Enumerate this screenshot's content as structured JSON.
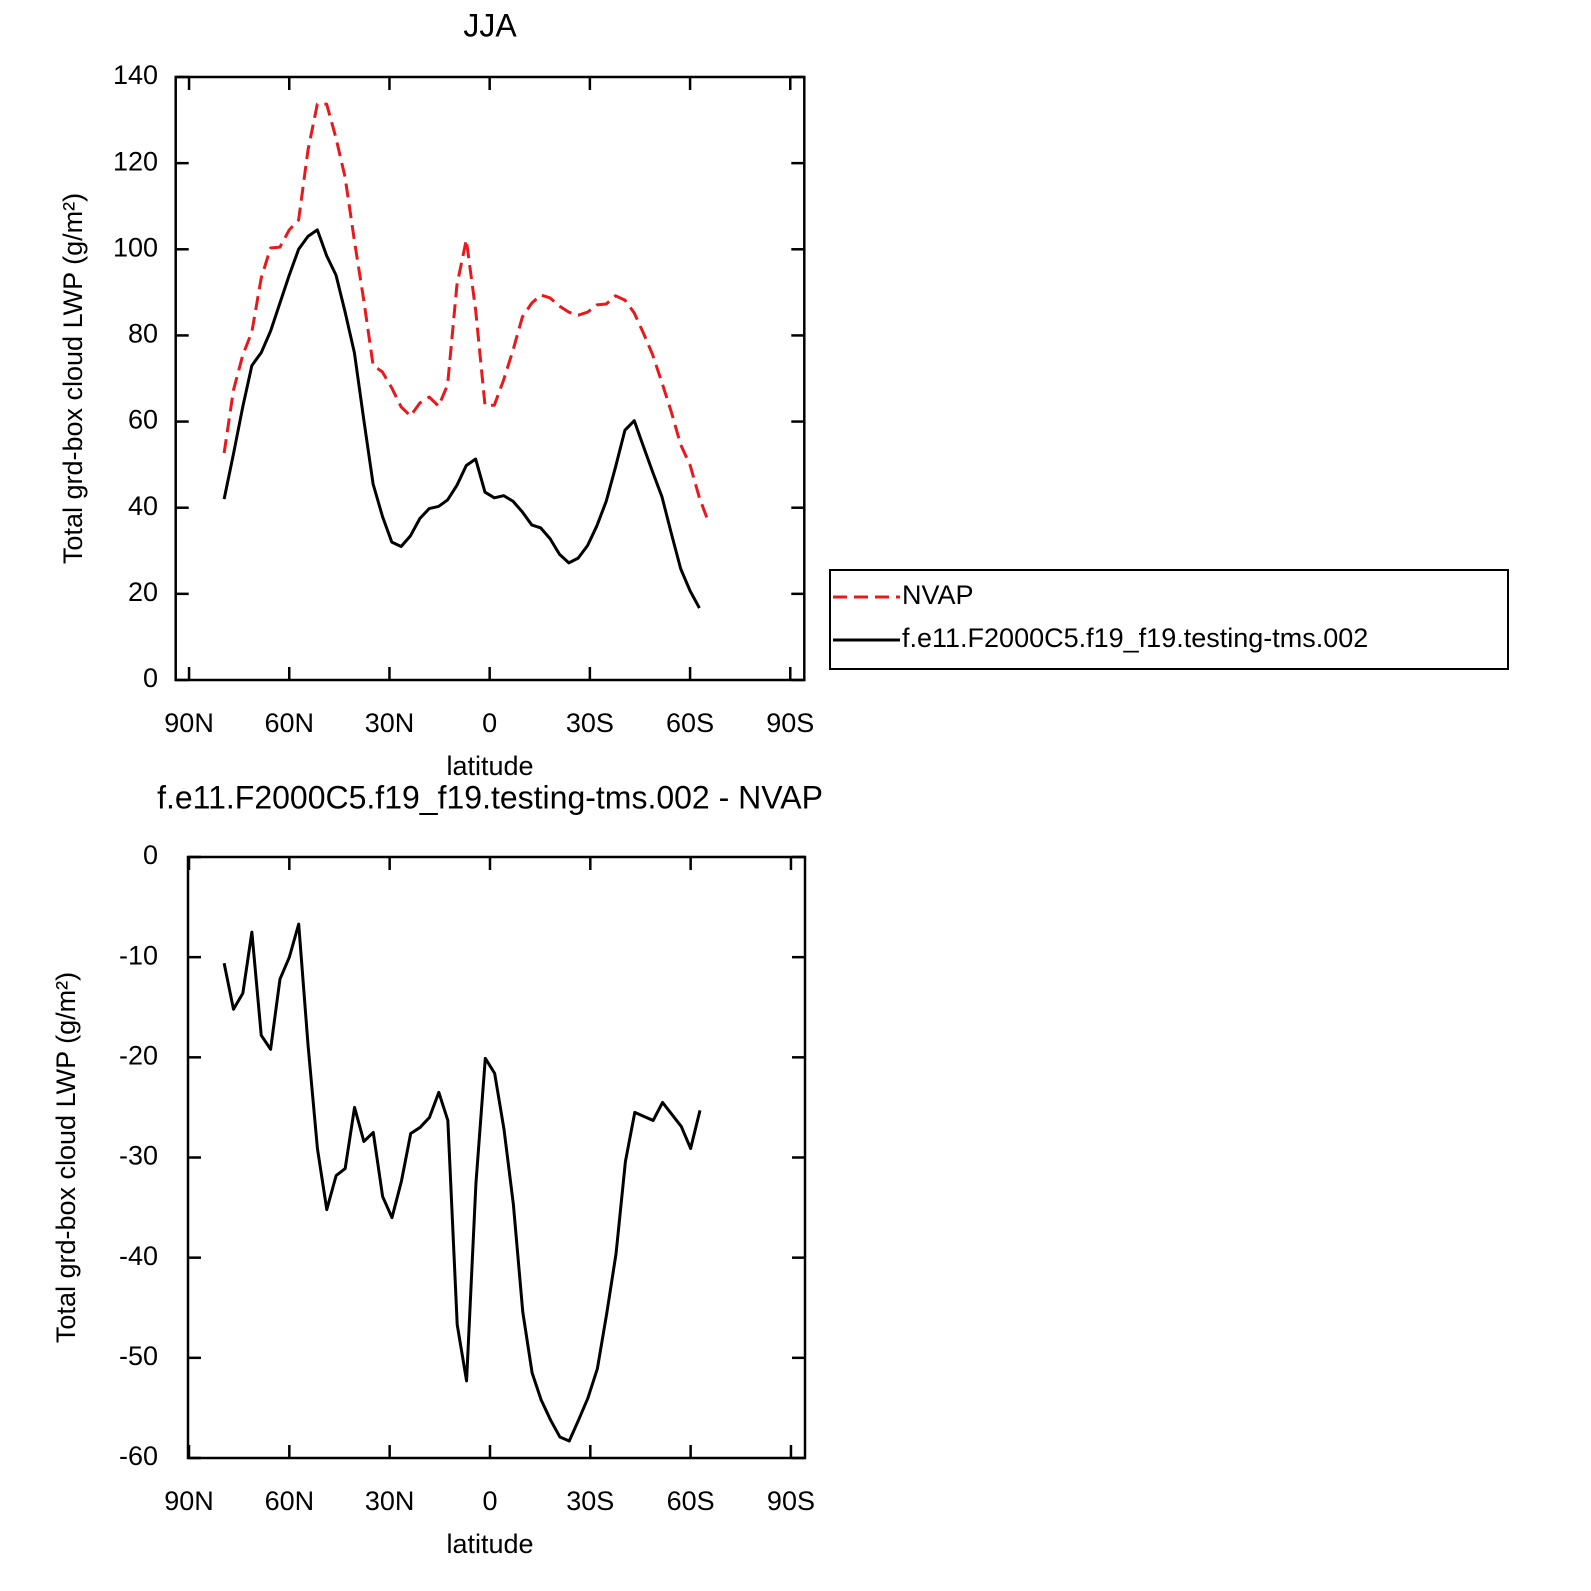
{
  "chart_data": [
    {
      "type": "line",
      "title": "JJA",
      "xlabel": "latitude",
      "ylabel": "Total grd-box cloud LWP (g/m²)",
      "x": [
        79.5,
        76.7,
        73.9,
        71.2,
        68.4,
        65.6,
        62.8,
        60.0,
        57.2,
        54.4,
        51.6,
        48.8,
        46.0,
        43.3,
        40.5,
        37.7,
        34.9,
        32.1,
        29.3,
        26.5,
        23.7,
        20.9,
        18.1,
        15.3,
        12.6,
        9.8,
        7.0,
        4.2,
        1.4,
        -1.4,
        -4.2,
        -7.0,
        -9.8,
        -12.6,
        -15.3,
        -18.1,
        -20.9,
        -23.7,
        -26.5,
        -29.3,
        -32.1,
        -34.9,
        -37.7,
        -40.5,
        -43.3,
        -46.0,
        -48.8,
        -51.6,
        -54.4,
        -57.2,
        -60.0,
        -62.8,
        -65.6
      ],
      "xlim": [
        94,
        -94.2
      ],
      "xticks": [
        {
          "value": 90,
          "label": "90N"
        },
        {
          "value": 60,
          "label": "60N"
        },
        {
          "value": 30,
          "label": "30N"
        },
        0,
        {
          "value": -30,
          "label": "30S"
        },
        {
          "value": -60,
          "label": "60S"
        },
        {
          "value": -90,
          "label": "90S"
        }
      ],
      "ylim": [
        0,
        140
      ],
      "yticks": [
        0,
        20,
        40,
        60,
        80,
        100,
        120,
        140
      ],
      "legend": "right",
      "series": [
        {
          "name": "NVAP",
          "color": "#e8191c",
          "linestyle": "dashed",
          "values": [
            52.7,
            67.3,
            75.5,
            80.8,
            93.3,
            100.3,
            100.5,
            104.5,
            106.8,
            123,
            133.7,
            133.7,
            125.8,
            116.8,
            102,
            88.2,
            73.1,
            71.5,
            67.8,
            63.4,
            61.3,
            64.3,
            65.7,
            63.6,
            68.5,
            91.7,
            102.2,
            85.9,
            63.8,
            63.8,
            69.7,
            76.6,
            84.3,
            87.5,
            89.4,
            88.7,
            86.8,
            85.4,
            84.7,
            85.4,
            87.1,
            87.3,
            89.2,
            88.2,
            85.2,
            80.6,
            75.5,
            69.0,
            62.2,
            54.6,
            49.9,
            42.3,
            36.5
          ]
        },
        {
          "name": "f.e11.F2000C5.f19_f19.testing-tms.002",
          "color": "#000000",
          "linestyle": "solid",
          "values": [
            42,
            52.5,
            63.5,
            73,
            76,
            81,
            87.5,
            94,
            100,
            103,
            104.5,
            98.5,
            94,
            85.5,
            76,
            60.5,
            45.5,
            38,
            32,
            31,
            33.5,
            37.5,
            39.8,
            40.3,
            41.8,
            45.2,
            49.8,
            51.3,
            43.6,
            42.3,
            42.8,
            41.5,
            39,
            36,
            35.3,
            32.8,
            29.2,
            27.2,
            28.3,
            31.2,
            35.8,
            41.5,
            49.5,
            58,
            60.2,
            54.3,
            48.3,
            42.5,
            34,
            25.8,
            20.7,
            16.7,
            null
          ]
        }
      ]
    },
    {
      "type": "line",
      "title": "f.e11.F2000C5.f19_f19.testing-tms.002 - NVAP",
      "xlabel": "latitude",
      "ylabel": "Total grd-box cloud LWP (g/m²)",
      "x": [
        79.5,
        76.7,
        73.9,
        71.2,
        68.4,
        65.6,
        62.8,
        60.0,
        57.2,
        54.4,
        51.6,
        48.8,
        46.0,
        43.3,
        40.5,
        37.7,
        34.9,
        32.1,
        29.3,
        26.5,
        23.7,
        20.9,
        18.1,
        15.3,
        12.6,
        9.8,
        7.0,
        4.2,
        1.4,
        -1.4,
        -4.2,
        -7.0,
        -9.8,
        -12.6,
        -15.3,
        -18.1,
        -20.9,
        -23.7,
        -26.5,
        -29.3,
        -32.1,
        -34.9,
        -37.7,
        -40.5,
        -43.3,
        -46.0,
        -48.8,
        -51.6,
        -54.4,
        -57.2,
        -60.0,
        -62.8,
        -65.6
      ],
      "xlim": [
        90.3,
        -94.2
      ],
      "xticks": [
        {
          "value": 90,
          "label": "90N"
        },
        {
          "value": 60,
          "label": "60N"
        },
        {
          "value": 30,
          "label": "30N"
        },
        0,
        {
          "value": -30,
          "label": "30S"
        },
        {
          "value": -60,
          "label": "60S"
        },
        {
          "value": -90,
          "label": "90S"
        }
      ],
      "ylim": [
        -60,
        0
      ],
      "yticks": [
        -60,
        -50,
        -40,
        -30,
        -20,
        -10,
        0
      ],
      "series": [
        {
          "color": "#000000",
          "linestyle": "solid",
          "values": [
            -10.6,
            -15.2,
            -13.6,
            -7.5,
            -17.8,
            -19.2,
            -12.2,
            -10.0,
            -6.7,
            -18.8,
            -29.1,
            -35.2,
            -31.8,
            -31.1,
            -25.0,
            -28.4,
            -27.5,
            -33.9,
            -36.0,
            -32.4,
            -27.6,
            -27.0,
            -26.0,
            -23.5,
            -26.3,
            -46.7,
            -52.3,
            -32.6,
            -20.1,
            -21.6,
            -27.2,
            -34.7,
            -45.4,
            -51.5,
            -54.2,
            -56.2,
            -57.9,
            -58.3,
            -56.2,
            -54.0,
            -51.1,
            -45.6,
            -39.6,
            -30.4,
            -25.5,
            -25.9,
            -26.3,
            -24.5,
            -25.7,
            -26.9,
            -29.1,
            -25.3,
            null
          ]
        }
      ]
    }
  ]
}
